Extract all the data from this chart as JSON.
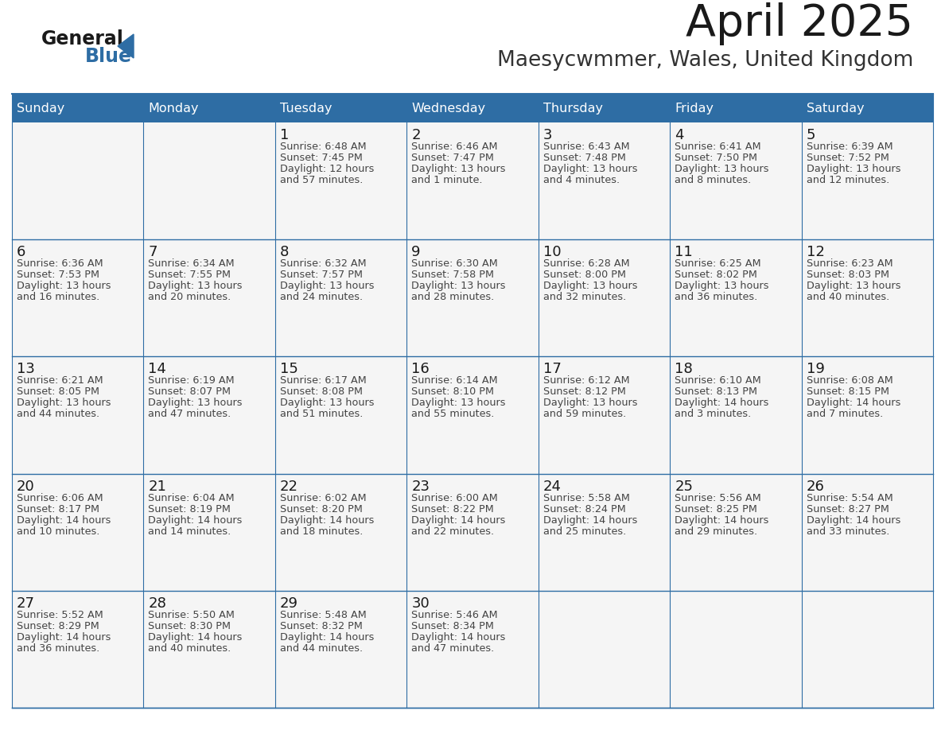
{
  "title": "April 2025",
  "subtitle": "Maesycwmmer, Wales, United Kingdom",
  "header_bg": "#2E6DA4",
  "header_text": "#FFFFFF",
  "cell_bg": "#F5F5F5",
  "border_color": "#2E6DA4",
  "day_names": [
    "Sunday",
    "Monday",
    "Tuesday",
    "Wednesday",
    "Thursday",
    "Friday",
    "Saturday"
  ],
  "title_color": "#1a1a1a",
  "subtitle_color": "#333333",
  "day_number_color": "#1a1a1a",
  "cell_text_color": "#444444",
  "logo_general_color": "#1a1a1a",
  "logo_blue_color": "#2E6DA4",
  "weeks": [
    [
      {
        "day": "",
        "sunrise": "",
        "sunset": "",
        "daylight": ""
      },
      {
        "day": "",
        "sunrise": "",
        "sunset": "",
        "daylight": ""
      },
      {
        "day": "1",
        "sunrise": "6:48 AM",
        "sunset": "7:45 PM",
        "daylight_h": "12 hours",
        "daylight_m": "and 57 minutes."
      },
      {
        "day": "2",
        "sunrise": "6:46 AM",
        "sunset": "7:47 PM",
        "daylight_h": "13 hours",
        "daylight_m": "and 1 minute."
      },
      {
        "day": "3",
        "sunrise": "6:43 AM",
        "sunset": "7:48 PM",
        "daylight_h": "13 hours",
        "daylight_m": "and 4 minutes."
      },
      {
        "day": "4",
        "sunrise": "6:41 AM",
        "sunset": "7:50 PM",
        "daylight_h": "13 hours",
        "daylight_m": "and 8 minutes."
      },
      {
        "day": "5",
        "sunrise": "6:39 AM",
        "sunset": "7:52 PM",
        "daylight_h": "13 hours",
        "daylight_m": "and 12 minutes."
      }
    ],
    [
      {
        "day": "6",
        "sunrise": "6:36 AM",
        "sunset": "7:53 PM",
        "daylight_h": "13 hours",
        "daylight_m": "and 16 minutes."
      },
      {
        "day": "7",
        "sunrise": "6:34 AM",
        "sunset": "7:55 PM",
        "daylight_h": "13 hours",
        "daylight_m": "and 20 minutes."
      },
      {
        "day": "8",
        "sunrise": "6:32 AM",
        "sunset": "7:57 PM",
        "daylight_h": "13 hours",
        "daylight_m": "and 24 minutes."
      },
      {
        "day": "9",
        "sunrise": "6:30 AM",
        "sunset": "7:58 PM",
        "daylight_h": "13 hours",
        "daylight_m": "and 28 minutes."
      },
      {
        "day": "10",
        "sunrise": "6:28 AM",
        "sunset": "8:00 PM",
        "daylight_h": "13 hours",
        "daylight_m": "and 32 minutes."
      },
      {
        "day": "11",
        "sunrise": "6:25 AM",
        "sunset": "8:02 PM",
        "daylight_h": "13 hours",
        "daylight_m": "and 36 minutes."
      },
      {
        "day": "12",
        "sunrise": "6:23 AM",
        "sunset": "8:03 PM",
        "daylight_h": "13 hours",
        "daylight_m": "and 40 minutes."
      }
    ],
    [
      {
        "day": "13",
        "sunrise": "6:21 AM",
        "sunset": "8:05 PM",
        "daylight_h": "13 hours",
        "daylight_m": "and 44 minutes."
      },
      {
        "day": "14",
        "sunrise": "6:19 AM",
        "sunset": "8:07 PM",
        "daylight_h": "13 hours",
        "daylight_m": "and 47 minutes."
      },
      {
        "day": "15",
        "sunrise": "6:17 AM",
        "sunset": "8:08 PM",
        "daylight_h": "13 hours",
        "daylight_m": "and 51 minutes."
      },
      {
        "day": "16",
        "sunrise": "6:14 AM",
        "sunset": "8:10 PM",
        "daylight_h": "13 hours",
        "daylight_m": "and 55 minutes."
      },
      {
        "day": "17",
        "sunrise": "6:12 AM",
        "sunset": "8:12 PM",
        "daylight_h": "13 hours",
        "daylight_m": "and 59 minutes."
      },
      {
        "day": "18",
        "sunrise": "6:10 AM",
        "sunset": "8:13 PM",
        "daylight_h": "14 hours",
        "daylight_m": "and 3 minutes."
      },
      {
        "day": "19",
        "sunrise": "6:08 AM",
        "sunset": "8:15 PM",
        "daylight_h": "14 hours",
        "daylight_m": "and 7 minutes."
      }
    ],
    [
      {
        "day": "20",
        "sunrise": "6:06 AM",
        "sunset": "8:17 PM",
        "daylight_h": "14 hours",
        "daylight_m": "and 10 minutes."
      },
      {
        "day": "21",
        "sunrise": "6:04 AM",
        "sunset": "8:19 PM",
        "daylight_h": "14 hours",
        "daylight_m": "and 14 minutes."
      },
      {
        "day": "22",
        "sunrise": "6:02 AM",
        "sunset": "8:20 PM",
        "daylight_h": "14 hours",
        "daylight_m": "and 18 minutes."
      },
      {
        "day": "23",
        "sunrise": "6:00 AM",
        "sunset": "8:22 PM",
        "daylight_h": "14 hours",
        "daylight_m": "and 22 minutes."
      },
      {
        "day": "24",
        "sunrise": "5:58 AM",
        "sunset": "8:24 PM",
        "daylight_h": "14 hours",
        "daylight_m": "and 25 minutes."
      },
      {
        "day": "25",
        "sunrise": "5:56 AM",
        "sunset": "8:25 PM",
        "daylight_h": "14 hours",
        "daylight_m": "and 29 minutes."
      },
      {
        "day": "26",
        "sunrise": "5:54 AM",
        "sunset": "8:27 PM",
        "daylight_h": "14 hours",
        "daylight_m": "and 33 minutes."
      }
    ],
    [
      {
        "day": "27",
        "sunrise": "5:52 AM",
        "sunset": "8:29 PM",
        "daylight_h": "14 hours",
        "daylight_m": "and 36 minutes."
      },
      {
        "day": "28",
        "sunrise": "5:50 AM",
        "sunset": "8:30 PM",
        "daylight_h": "14 hours",
        "daylight_m": "and 40 minutes."
      },
      {
        "day": "29",
        "sunrise": "5:48 AM",
        "sunset": "8:32 PM",
        "daylight_h": "14 hours",
        "daylight_m": "and 44 minutes."
      },
      {
        "day": "30",
        "sunrise": "5:46 AM",
        "sunset": "8:34 PM",
        "daylight_h": "14 hours",
        "daylight_m": "and 47 minutes."
      },
      {
        "day": "",
        "sunrise": "",
        "sunset": "",
        "daylight_h": "",
        "daylight_m": ""
      },
      {
        "day": "",
        "sunrise": "",
        "sunset": "",
        "daylight_h": "",
        "daylight_m": ""
      },
      {
        "day": "",
        "sunrise": "",
        "sunset": "",
        "daylight_h": "",
        "daylight_m": ""
      }
    ]
  ]
}
